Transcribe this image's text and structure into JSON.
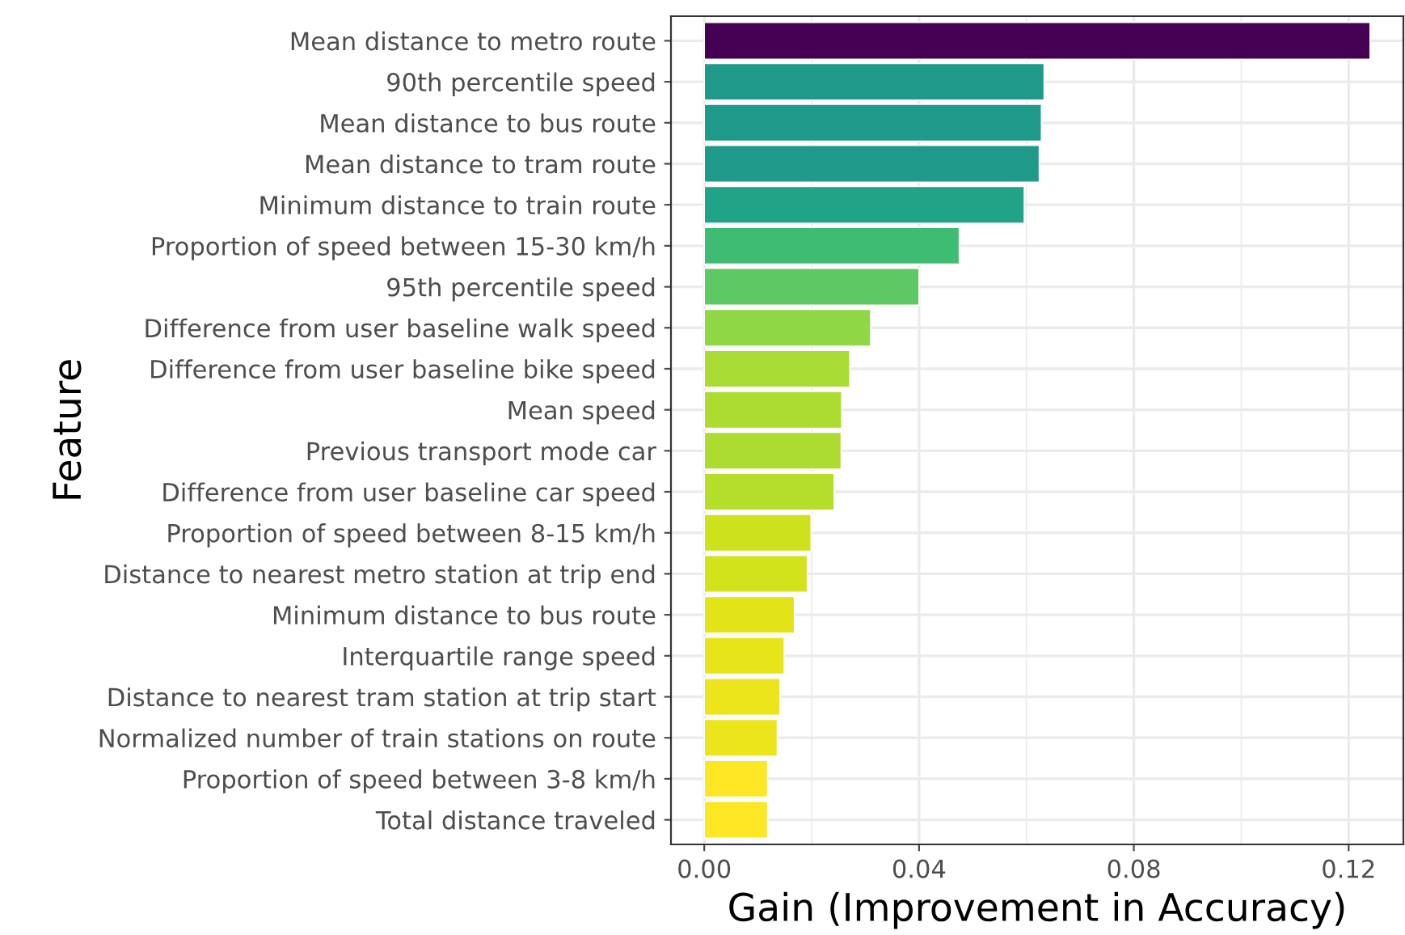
{
  "chart_data": {
    "type": "bar",
    "orientation": "horizontal",
    "xlabel": "Gain (Improvement in Accuracy)",
    "ylabel": "Feature",
    "categories": [
      "Mean distance to metro route",
      "90th percentile speed",
      "Mean distance to bus route",
      "Mean distance to tram route",
      "Minimum distance to train route",
      "Proportion of speed between 15-30 km/h",
      "95th percentile speed",
      "Difference from user baseline walk speed",
      "Difference from user baseline bike speed",
      "Mean speed",
      "Previous transport mode car",
      "Difference from user baseline car speed",
      "Proportion of speed between 8-15 km/h",
      "Distance to nearest metro station at trip end",
      "Minimum distance to bus route",
      "Interquartile range speed",
      "Distance to nearest tram station at trip start",
      "Normalized number of train stations on route",
      "Proportion of speed between 3-8 km/h",
      "Total distance traveled"
    ],
    "values": [
      0.124,
      0.0633,
      0.0628,
      0.0624,
      0.0596,
      0.0475,
      0.04,
      0.031,
      0.0271,
      0.0256,
      0.0255,
      0.0242,
      0.0199,
      0.0192,
      0.0168,
      0.0149,
      0.0141,
      0.0136,
      0.0118,
      0.0118
    ],
    "colors": [
      "#440154",
      "#1f9a8a",
      "#1f9a8a",
      "#1f9a8a",
      "#20a386",
      "#3fbc73",
      "#5ec962",
      "#8fd744",
      "#a8db34",
      "#addc30",
      "#addc30",
      "#b5de2b",
      "#cde11d",
      "#d2e21b",
      "#e2e418",
      "#e7e419",
      "#ece51b",
      "#ece51b",
      "#fde725",
      "#fde725"
    ],
    "xlim": [
      -0.0062,
      0.1302
    ],
    "xticks": [
      {
        "value": 0,
        "label": "0.00"
      },
      0.04,
      0.08,
      0.12
    ],
    "grid": true
  }
}
